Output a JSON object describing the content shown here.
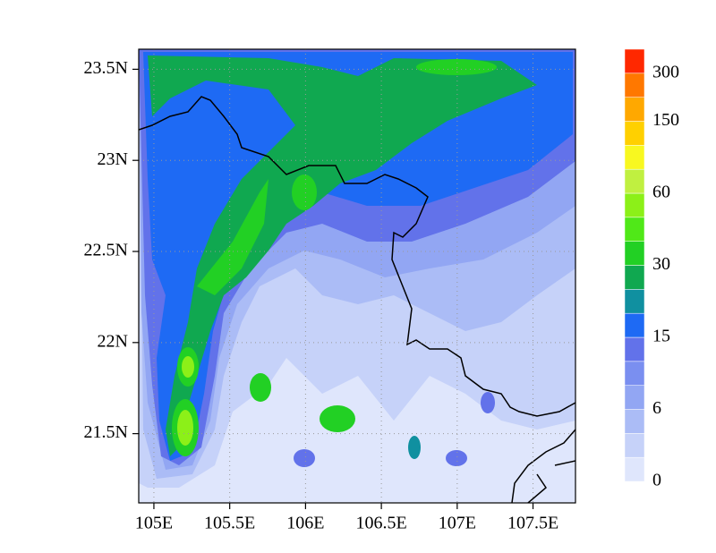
{
  "map": {
    "xlim": [
      104.9,
      107.78
    ],
    "ylim": [
      21.12,
      23.61
    ],
    "xticks": [
      {
        "value": 105,
        "label": "105E"
      },
      {
        "value": 105.5,
        "label": "105.5E"
      },
      {
        "value": 106,
        "label": "106E"
      },
      {
        "value": 106.5,
        "label": "106.5E"
      },
      {
        "value": 107,
        "label": "107E"
      },
      {
        "value": 107.5,
        "label": "107.5E"
      }
    ],
    "yticks": [
      {
        "value": 21.5,
        "label": "21.5N"
      },
      {
        "value": 22,
        "label": "22N"
      },
      {
        "value": 22.5,
        "label": "22.5N"
      },
      {
        "value": 23,
        "label": "23N"
      },
      {
        "value": 23.5,
        "label": "23.5N"
      }
    ],
    "grid": true,
    "colorbar": {
      "colors": [
        "#dfe6fc",
        "#c6d2f9",
        "#abbcf6",
        "#92a6f3",
        "#7a8ff0",
        "#6272ea",
        "#1e6af4",
        "#1090a0",
        "#10a850",
        "#22d024",
        "#50e818",
        "#8cf018",
        "#c0f040",
        "#f8f820",
        "#ffd000",
        "#ffa800",
        "#ff7800",
        "#ff2800"
      ],
      "labels": [
        0,
        6,
        15,
        30,
        60,
        150,
        300
      ]
    }
  }
}
